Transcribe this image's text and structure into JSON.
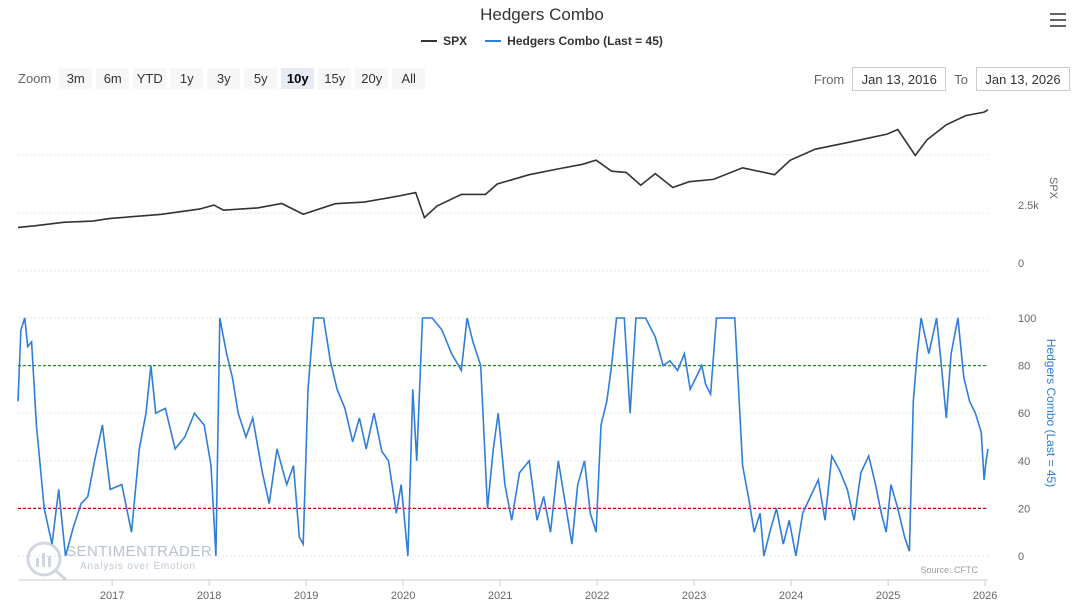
{
  "chart_data": {
    "type": "line",
    "title": "Hedgers Combo",
    "series": [
      {
        "name": "SPX",
        "color": "#333333"
      },
      {
        "name": "Hedgers Combo (Last = 45)",
        "color": "#2f7ed8"
      }
    ],
    "x_ticks": [
      "2017",
      "2018",
      "2019",
      "2020",
      "2021",
      "2022",
      "2023",
      "2024",
      "2025",
      "2026"
    ],
    "spx_axis": {
      "label": "SPX",
      "ticks": [
        "2.5k",
        "0"
      ]
    },
    "hedgers_axis": {
      "label": "Hedgers Combo (Last = 45)",
      "ticks": [
        "100",
        "80",
        "60",
        "40",
        "20",
        "0"
      ],
      "ylim": [
        0,
        100
      ]
    },
    "reference_lines": [
      {
        "value": 80,
        "color": "#2a8a2a"
      },
      {
        "value": 20,
        "color": "#cc0000"
      }
    ],
    "spx_points": [
      [
        2016.03,
        1880
      ],
      [
        2016.2,
        1950
      ],
      [
        2016.5,
        2100
      ],
      [
        2016.8,
        2150
      ],
      [
        2016.95,
        2250
      ],
      [
        2017.0,
        2270
      ],
      [
        2017.5,
        2440
      ],
      [
        2017.9,
        2670
      ],
      [
        2018.05,
        2840
      ],
      [
        2018.15,
        2620
      ],
      [
        2018.5,
        2720
      ],
      [
        2018.75,
        2910
      ],
      [
        2018.97,
        2450
      ],
      [
        2019.3,
        2900
      ],
      [
        2019.6,
        2970
      ],
      [
        2019.95,
        3230
      ],
      [
        2020.13,
        3380
      ],
      [
        2020.22,
        2300
      ],
      [
        2020.35,
        2800
      ],
      [
        2020.6,
        3300
      ],
      [
        2020.85,
        3300
      ],
      [
        2020.97,
        3750
      ],
      [
        2021.3,
        4150
      ],
      [
        2021.6,
        4400
      ],
      [
        2021.85,
        4600
      ],
      [
        2021.99,
        4780
      ],
      [
        2022.15,
        4300
      ],
      [
        2022.3,
        4250
      ],
      [
        2022.45,
        3700
      ],
      [
        2022.6,
        4200
      ],
      [
        2022.78,
        3600
      ],
      [
        2022.95,
        3850
      ],
      [
        2023.2,
        3950
      ],
      [
        2023.5,
        4450
      ],
      [
        2023.83,
        4150
      ],
      [
        2023.99,
        4770
      ],
      [
        2024.25,
        5250
      ],
      [
        2024.6,
        5550
      ],
      [
        2024.99,
        5900
      ],
      [
        2025.1,
        6100
      ],
      [
        2025.28,
        4980
      ],
      [
        2025.4,
        5650
      ],
      [
        2025.6,
        6300
      ],
      [
        2025.8,
        6700
      ],
      [
        2025.99,
        6850
      ],
      [
        2026.03,
        6950
      ]
    ],
    "hedgers_points": [
      [
        2016.03,
        65
      ],
      [
        2016.06,
        95
      ],
      [
        2016.1,
        100
      ],
      [
        2016.13,
        88
      ],
      [
        2016.17,
        90
      ],
      [
        2016.22,
        55
      ],
      [
        2016.3,
        20
      ],
      [
        2016.38,
        5
      ],
      [
        2016.45,
        28
      ],
      [
        2016.52,
        0
      ],
      [
        2016.6,
        12
      ],
      [
        2016.68,
        22
      ],
      [
        2016.75,
        25
      ],
      [
        2016.82,
        40
      ],
      [
        2016.9,
        55
      ],
      [
        2016.98,
        28
      ],
      [
        2017.1,
        30
      ],
      [
        2017.2,
        10
      ],
      [
        2017.28,
        45
      ],
      [
        2017.35,
        60
      ],
      [
        2017.4,
        80
      ],
      [
        2017.45,
        60
      ],
      [
        2017.55,
        62
      ],
      [
        2017.65,
        45
      ],
      [
        2017.75,
        50
      ],
      [
        2017.85,
        60
      ],
      [
        2017.95,
        55
      ],
      [
        2018.02,
        38
      ],
      [
        2018.07,
        0
      ],
      [
        2018.11,
        100
      ],
      [
        2018.18,
        85
      ],
      [
        2018.24,
        75
      ],
      [
        2018.3,
        60
      ],
      [
        2018.38,
        50
      ],
      [
        2018.45,
        58
      ],
      [
        2018.55,
        35
      ],
      [
        2018.62,
        22
      ],
      [
        2018.7,
        45
      ],
      [
        2018.8,
        30
      ],
      [
        2018.87,
        38
      ],
      [
        2018.93,
        8
      ],
      [
        2018.97,
        5
      ],
      [
        2019.02,
        70
      ],
      [
        2019.08,
        100
      ],
      [
        2019.18,
        100
      ],
      [
        2019.25,
        82
      ],
      [
        2019.32,
        70
      ],
      [
        2019.4,
        62
      ],
      [
        2019.48,
        48
      ],
      [
        2019.55,
        58
      ],
      [
        2019.62,
        45
      ],
      [
        2019.7,
        60
      ],
      [
        2019.78,
        44
      ],
      [
        2019.85,
        40
      ],
      [
        2019.93,
        18
      ],
      [
        2019.98,
        30
      ],
      [
        2020.05,
        0
      ],
      [
        2020.1,
        70
      ],
      [
        2020.14,
        40
      ],
      [
        2020.2,
        100
      ],
      [
        2020.3,
        100
      ],
      [
        2020.4,
        95
      ],
      [
        2020.5,
        85
      ],
      [
        2020.6,
        78
      ],
      [
        2020.66,
        100
      ],
      [
        2020.72,
        90
      ],
      [
        2020.8,
        80
      ],
      [
        2020.87,
        20
      ],
      [
        2020.93,
        45
      ],
      [
        2020.98,
        60
      ],
      [
        2021.05,
        30
      ],
      [
        2021.12,
        15
      ],
      [
        2021.2,
        35
      ],
      [
        2021.3,
        40
      ],
      [
        2021.38,
        15
      ],
      [
        2021.45,
        25
      ],
      [
        2021.52,
        10
      ],
      [
        2021.6,
        40
      ],
      [
        2021.68,
        20
      ],
      [
        2021.74,
        5
      ],
      [
        2021.8,
        30
      ],
      [
        2021.87,
        40
      ],
      [
        2021.93,
        18
      ],
      [
        2021.99,
        10
      ],
      [
        2022.04,
        55
      ],
      [
        2022.1,
        65
      ],
      [
        2022.15,
        80
      ],
      [
        2022.2,
        100
      ],
      [
        2022.28,
        100
      ],
      [
        2022.34,
        60
      ],
      [
        2022.4,
        100
      ],
      [
        2022.5,
        100
      ],
      [
        2022.6,
        92
      ],
      [
        2022.68,
        80
      ],
      [
        2022.75,
        82
      ],
      [
        2022.83,
        78
      ],
      [
        2022.9,
        85
      ],
      [
        2022.96,
        70
      ],
      [
        2023.02,
        75
      ],
      [
        2023.08,
        80
      ],
      [
        2023.12,
        72
      ],
      [
        2023.17,
        68
      ],
      [
        2023.23,
        100
      ],
      [
        2023.35,
        100
      ],
      [
        2023.42,
        100
      ],
      [
        2023.5,
        38
      ],
      [
        2023.56,
        25
      ],
      [
        2023.62,
        10
      ],
      [
        2023.68,
        18
      ],
      [
        2023.72,
        0
      ],
      [
        2023.78,
        10
      ],
      [
        2023.85,
        20
      ],
      [
        2023.92,
        5
      ],
      [
        2023.98,
        15
      ],
      [
        2024.05,
        0
      ],
      [
        2024.12,
        18
      ],
      [
        2024.2,
        25
      ],
      [
        2024.28,
        32
      ],
      [
        2024.35,
        15
      ],
      [
        2024.42,
        42
      ],
      [
        2024.5,
        36
      ],
      [
        2024.58,
        28
      ],
      [
        2024.65,
        15
      ],
      [
        2024.72,
        35
      ],
      [
        2024.8,
        42
      ],
      [
        2024.87,
        30
      ],
      [
        2024.93,
        18
      ],
      [
        2024.98,
        10
      ],
      [
        2025.03,
        30
      ],
      [
        2025.1,
        20
      ],
      [
        2025.17,
        8
      ],
      [
        2025.22,
        2
      ],
      [
        2025.26,
        65
      ],
      [
        2025.3,
        85
      ],
      [
        2025.34,
        100
      ],
      [
        2025.42,
        85
      ],
      [
        2025.5,
        100
      ],
      [
        2025.55,
        80
      ],
      [
        2025.6,
        58
      ],
      [
        2025.65,
        85
      ],
      [
        2025.72,
        100
      ],
      [
        2025.78,
        75
      ],
      [
        2025.84,
        65
      ],
      [
        2025.9,
        60
      ],
      [
        2025.96,
        52
      ],
      [
        2025.99,
        32
      ],
      [
        2026.01,
        40
      ],
      [
        2026.03,
        45
      ]
    ]
  },
  "header": {
    "menu_icon": "hamburger-menu-icon"
  },
  "zoom": {
    "label": "Zoom",
    "buttons": [
      "3m",
      "6m",
      "YTD",
      "1y",
      "3y",
      "5y",
      "10y",
      "15y",
      "20y",
      "All"
    ],
    "active": "10y"
  },
  "range": {
    "from_label": "From",
    "from_value": "Jan 13, 2016",
    "to_label": "To",
    "to_value": "Jan 13, 2026"
  },
  "watermark": {
    "brand": "SENTIMENTRADER",
    "tagline": "Analysis over Emotion"
  },
  "source": "Source: CFTC"
}
